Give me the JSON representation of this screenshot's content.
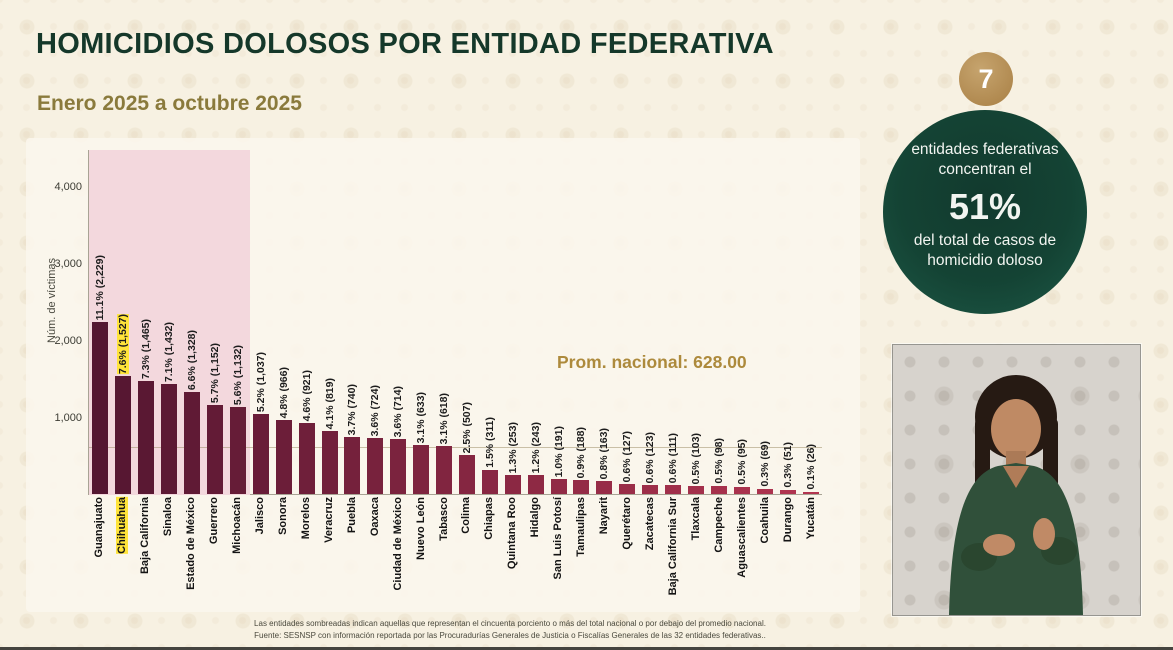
{
  "page": {
    "title": "HOMICIDIOS DOLOSOS POR ENTIDAD FEDERATIVA",
    "subtitle": "Enero 2025 a octubre 2025"
  },
  "chart_data": {
    "type": "bar",
    "title": "Homicidios dolosos por entidad federativa, enero 2025 a octubre 2025",
    "ylabel": "Núm. de víctimas",
    "ylim": [
      0,
      4480
    ],
    "yticks": [
      {
        "value": 1000,
        "label": "1,000"
      },
      {
        "value": 2000,
        "label": "2,000"
      },
      {
        "value": 3000,
        "label": "3,000"
      },
      {
        "value": 4000,
        "label": "4,000"
      }
    ],
    "average": {
      "value": 628,
      "label": "Prom. nacional: 628.00"
    },
    "shaded_bars_count": 7,
    "highlighted_category": "Chihuahua",
    "bars": [
      {
        "name": "Guanajuato",
        "value": 2229,
        "label": "11.1% (2,229)",
        "highlight": false
      },
      {
        "name": "Chihuahua",
        "value": 1527,
        "label": "7.6% (1,527)",
        "highlight": true
      },
      {
        "name": "Baja California",
        "value": 1465,
        "label": "7.3% (1,465)",
        "highlight": false
      },
      {
        "name": "Sinaloa",
        "value": 1432,
        "label": "7.1% (1,432)",
        "highlight": false
      },
      {
        "name": "Estado de México",
        "value": 1328,
        "label": "6.6% (1,328)",
        "highlight": false
      },
      {
        "name": "Guerrero",
        "value": 1152,
        "label": "5.7% (1,152)",
        "highlight": false
      },
      {
        "name": "Michoacán",
        "value": 1132,
        "label": "5.6% (1,132)",
        "highlight": false
      },
      {
        "name": "Jalisco",
        "value": 1037,
        "label": "5.2% (1,037)",
        "highlight": false
      },
      {
        "name": "Sonora",
        "value": 966,
        "label": "4.8% (966)",
        "highlight": false
      },
      {
        "name": "Morelos",
        "value": 921,
        "label": "4.6% (921)",
        "highlight": false
      },
      {
        "name": "Veracruz",
        "value": 819,
        "label": "4.1% (819)",
        "highlight": false
      },
      {
        "name": "Puebla",
        "value": 740,
        "label": "3.7% (740)",
        "highlight": false
      },
      {
        "name": "Oaxaca",
        "value": 724,
        "label": "3.6% (724)",
        "highlight": false
      },
      {
        "name": "Ciudad de México",
        "value": 714,
        "label": "3.6% (714)",
        "highlight": false
      },
      {
        "name": "Nuevo León",
        "value": 633,
        "label": "3.1% (633)",
        "highlight": false
      },
      {
        "name": "Tabasco",
        "value": 618,
        "label": "3.1% (618)",
        "highlight": false
      },
      {
        "name": "Colima",
        "value": 507,
        "label": "2.5% (507)",
        "highlight": false
      },
      {
        "name": "Chiapas",
        "value": 311,
        "label": "1.5% (311)",
        "highlight": false
      },
      {
        "name": "Quintana Roo",
        "value": 253,
        "label": "1.3% (253)",
        "highlight": false
      },
      {
        "name": "Hidalgo",
        "value": 243,
        "label": "1.2% (243)",
        "highlight": false
      },
      {
        "name": "San Luis Potosí",
        "value": 191,
        "label": "1.0% (191)",
        "highlight": false
      },
      {
        "name": "Tamaulipas",
        "value": 188,
        "label": "0.9% (188)",
        "highlight": false
      },
      {
        "name": "Nayarit",
        "value": 163,
        "label": "0.8% (163)",
        "highlight": false
      },
      {
        "name": "Querétaro",
        "value": 127,
        "label": "0.6% (127)",
        "highlight": false
      },
      {
        "name": "Zacatecas",
        "value": 123,
        "label": "0.6% (123)",
        "highlight": false
      },
      {
        "name": "Baja California Sur",
        "value": 111,
        "label": "0.6% (111)",
        "highlight": false
      },
      {
        "name": "Tlaxcala",
        "value": 103,
        "label": "0.5% (103)",
        "highlight": false
      },
      {
        "name": "Campeche",
        "value": 98,
        "label": "0.5% (98)",
        "highlight": false
      },
      {
        "name": "Aguascalientes",
        "value": 95,
        "label": "0.5% (95)",
        "highlight": false
      },
      {
        "name": "Coahuila",
        "value": 69,
        "label": "0.3% (69)",
        "highlight": false
      },
      {
        "name": "Durango",
        "value": 51,
        "label": "0.3% (51)",
        "highlight": false
      },
      {
        "name": "Yucatán",
        "value": 26,
        "label": "0.1% (26)",
        "highlight": false
      }
    ]
  },
  "badge": {
    "number": "7",
    "line1": "entidades federativas",
    "line2": "concentran el",
    "percent": "51%",
    "line3": "del total de casos de",
    "line4": "homicidio doloso"
  },
  "footer": {
    "line1": "Las entidades sombreadas indican aquellas que representan el cincuenta porciento o más del total nacional o por debajo del promedio nacional.",
    "line2": "Fuente: SESNSP con información reportada por las Procuradurías Generales de Justicia o Fiscalías Generales de las 32 entidades federativas.."
  }
}
